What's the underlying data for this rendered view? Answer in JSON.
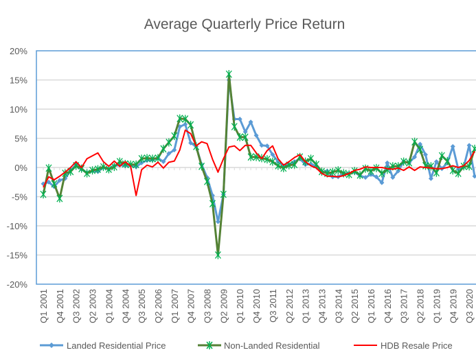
{
  "chart_data": {
    "type": "line",
    "title": "Average Quarterly Price Return",
    "xlabel": "",
    "ylabel": "",
    "ylim": [
      -20,
      20
    ],
    "ytick_step": 5,
    "ytick_format": "percent",
    "grid": true,
    "legend_position": "bottom",
    "x_label_every": 3,
    "categories": [
      "Q1 2001",
      "Q2 2001",
      "Q3 2001",
      "Q4 2001",
      "Q1 2002",
      "Q2 2002",
      "Q3 2002",
      "Q4 2002",
      "Q1 2003",
      "Q2 2003",
      "Q3 2003",
      "Q4 2003",
      "Q1 2004",
      "Q2 2004",
      "Q3 2004",
      "Q4 2004",
      "Q1 2005",
      "Q2 2005",
      "Q3 2005",
      "Q4 2005",
      "Q1 2006",
      "Q2 2006",
      "Q3 2006",
      "Q4 2006",
      "Q1 2007",
      "Q2 2007",
      "Q3 2007",
      "Q4 2007",
      "Q1 2008",
      "Q2 2008",
      "Q3 2008",
      "Q4 2008",
      "Q1 2009",
      "Q2 2009",
      "Q3 2009",
      "Q4 2009",
      "Q1 2010",
      "Q2 2010",
      "Q3 2010",
      "Q4 2010",
      "Q1 2011",
      "Q2 2011",
      "Q3 2011",
      "Q4 2011",
      "Q1 2012",
      "Q2 2012",
      "Q3 2012",
      "Q4 2012",
      "Q1 2013",
      "Q2 2013",
      "Q3 2013",
      "Q4 2013",
      "Q1 2014",
      "Q2 2014",
      "Q3 2014",
      "Q4 2014",
      "Q1 2015",
      "Q2 2015",
      "Q3 2015",
      "Q4 2015",
      "Q1 2016",
      "Q2 2016",
      "Q3 2016",
      "Q4 2016",
      "Q1 2017",
      "Q2 2017",
      "Q3 2017",
      "Q4 2017",
      "Q1 2018",
      "Q2 2018",
      "Q3 2018",
      "Q4 2018",
      "Q1 2019",
      "Q2 2019",
      "Q3 2019",
      "Q4 2019",
      "Q1 2020",
      "Q2 2020",
      "Q3 2020",
      "Q4 2020"
    ],
    "series": [
      {
        "name": "Landed Residential Price",
        "color": "#5B9BD5",
        "marker": "diamond",
        "values": [
          -2.8,
          -2.5,
          -3.3,
          -2.2,
          -1.9,
          -0.5,
          0.5,
          -0.3,
          -0.9,
          -0.6,
          -0.7,
          0,
          -0.3,
          0.3,
          0.4,
          0.3,
          0.4,
          0.1,
          0.8,
          1.2,
          1.3,
          1.6,
          1.0,
          2.4,
          3.0,
          7.0,
          7.4,
          4.2,
          3.6,
          0.5,
          -1.7,
          -4.8,
          -9.3,
          -4.6,
          15.0,
          8.3,
          8.3,
          6.1,
          7.8,
          5.5,
          3.8,
          3.7,
          2.2,
          1.0,
          0.3,
          0.5,
          1.0,
          1.5,
          0.5,
          0.6,
          0.2,
          -0.8,
          -0.6,
          -1.6,
          -1.6,
          -1.0,
          -1.0,
          -0.8,
          -1.4,
          -1.7,
          -1.2,
          -1.6,
          -2.6,
          0.8,
          -1.7,
          -0.6,
          1.0,
          0.8,
          1.8,
          4.0,
          2.2,
          -1.9,
          1.0,
          -0.2,
          0.8,
          3.6,
          -0.3,
          0.1,
          3.8,
          -1.5
        ]
      },
      {
        "name": "Non-Landed Residential",
        "color": "#548235",
        "marker_color": "#00B050",
        "marker": "asterisk",
        "values": [
          -4.6,
          -0.1,
          -2.8,
          -5.3,
          -1.0,
          -0.7,
          0.3,
          -0.2,
          -1.0,
          -0.5,
          -0.3,
          0.1,
          -0.3,
          0.1,
          1.0,
          0.6,
          0.5,
          0.5,
          1.5,
          1.6,
          1.5,
          1.6,
          3.2,
          4.3,
          5.4,
          8.4,
          8.3,
          7.3,
          3.6,
          0.2,
          -2.4,
          -6.2,
          -15.0,
          -4.6,
          16.0,
          7.0,
          5.2,
          5.2,
          1.8,
          1.8,
          1.6,
          1.4,
          1.0,
          0.3,
          -0.1,
          0.4,
          0.5,
          1.8,
          1.0,
          1.5,
          0.5,
          -0.7,
          -1.0,
          -0.8,
          -0.5,
          -1.0,
          -1.2,
          -0.6,
          -1.3,
          -0.2,
          -0.6,
          -0.1,
          -1.0,
          -0.4,
          0.2,
          0.2,
          1.0,
          0.8,
          4.4,
          3.1,
          0.3,
          0.2,
          -0.9,
          2.0,
          1.1,
          -0.5,
          -1.0,
          0.2,
          0.2,
          3.2
        ]
      },
      {
        "name": "HDB Resale Price",
        "color": "#FF0000",
        "marker": "none",
        "values": [
          -3.4,
          -1.6,
          -2.1,
          -1.5,
          -0.8,
          0,
          1.0,
          0,
          1.5,
          2.0,
          2.5,
          1.0,
          0.2,
          1.1,
          0.2,
          1.0,
          0.2,
          -4.8,
          -0.4,
          0.4,
          0.1,
          0.9,
          -0.1,
          0.9,
          1.1,
          3.0,
          6.4,
          5.8,
          3.7,
          4.4,
          4.1,
          1.4,
          -0.8,
          1.5,
          3.5,
          3.7,
          2.9,
          3.8,
          3.8,
          2.5,
          1.5,
          2.9,
          3.7,
          1.5,
          0.4,
          1.0,
          1.7,
          2.2,
          1.0,
          0.3,
          -0.1,
          -1.0,
          -1.5,
          -1.5,
          -1.6,
          -1.4,
          -1.0,
          -0.5,
          -0.3,
          0.1,
          0,
          0,
          0,
          -0.2,
          -0.3,
          -0.1,
          -0.5,
          0.1,
          -0.5,
          0.1,
          0,
          -0.1,
          -0.2,
          -0.2,
          0,
          0.3,
          0,
          0.3,
          1.2,
          2.8
        ]
      }
    ]
  }
}
